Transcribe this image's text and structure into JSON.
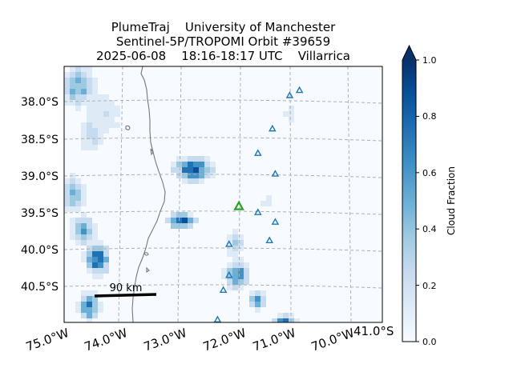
{
  "title": {
    "line1": "PlumeTraj    University of Manchester",
    "line2": "Sentinel-5P/TROPOMI Orbit #39659",
    "line3": "2025-06-08    18:16-18:17 UTC    Villarrica"
  },
  "lat_labels": [
    "38.0°S",
    "38.5°S",
    "39.0°S",
    "39.5°S",
    "40.0°S",
    "40.5°S"
  ],
  "lon_labels": [
    "75.0°W",
    "74.0°W",
    "73.0°W",
    "72.0°W",
    "71.0°W",
    "70.0°W"
  ],
  "corner_label": "41.0°S",
  "scale_bar": {
    "label": "90 km"
  },
  "colorbar": {
    "label": "Cloud Fraction",
    "ticks": [
      "0.0",
      "0.2",
      "0.4",
      "0.6",
      "0.8",
      "1.0"
    ],
    "colormap": [
      "#f7fbff",
      "#deebf7",
      "#c6dbef",
      "#9ecae1",
      "#6baed6",
      "#4292c6",
      "#2171b5",
      "#08519c",
      "#08306b"
    ]
  },
  "markers": {
    "volcano_color": "#2ca02c",
    "vent_color": "#1f77b4"
  },
  "chart_data": {
    "type": "heatmap",
    "variable": "Cloud Fraction",
    "clim": [
      0,
      1
    ],
    "colorbar_extend": "max",
    "volcano": {
      "name": "Villarrica",
      "lon": 71.93,
      "lat": -39.42
    },
    "other_volcanoes": [
      {
        "lon": 70.88,
        "lat": -37.85
      },
      {
        "lon": 71.05,
        "lat": -37.92
      },
      {
        "lon": 71.35,
        "lat": -38.37
      },
      {
        "lon": 71.6,
        "lat": -38.7
      },
      {
        "lon": 71.3,
        "lat": -38.98
      },
      {
        "lon": 71.6,
        "lat": -39.5
      },
      {
        "lon": 71.3,
        "lat": -39.63
      },
      {
        "lon": 71.4,
        "lat": -39.88
      },
      {
        "lon": 72.1,
        "lat": -39.93
      },
      {
        "lon": 72.1,
        "lat": -40.35
      },
      {
        "lon": 72.2,
        "lat": -40.55
      },
      {
        "lon": 72.3,
        "lat": -40.95
      }
    ]
  }
}
